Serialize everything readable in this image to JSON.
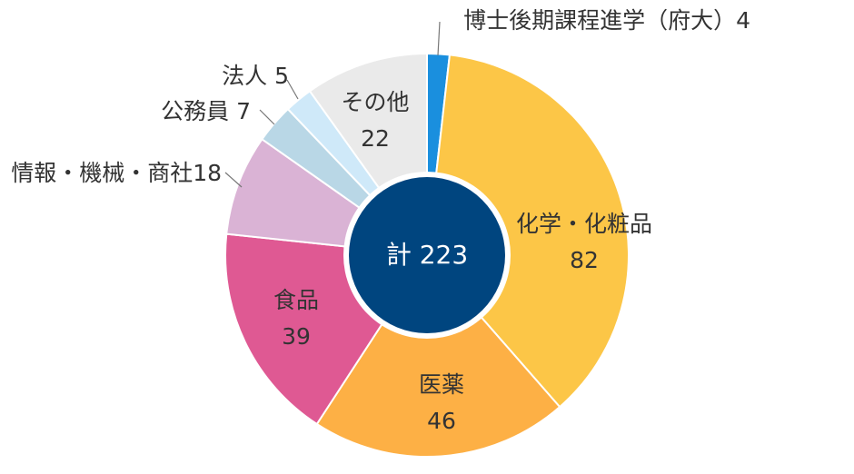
{
  "chart_data": {
    "type": "pie",
    "style": "donut",
    "center_label": "計 223",
    "total": 223,
    "slices": [
      {
        "label": "博士後期課程進学（府大）",
        "value": 4,
        "display": "博士後期課程進学（府大）4",
        "color": "#1a8fde"
      },
      {
        "label": "化学・化粧品",
        "value": 82,
        "display": "化学・化粧品",
        "value_text": "82",
        "color": "#fcc647"
      },
      {
        "label": "医薬",
        "value": 46,
        "display": "医薬",
        "value_text": "46",
        "color": "#fdb045"
      },
      {
        "label": "食品",
        "value": 39,
        "display": "食品",
        "value_text": "39",
        "color": "#df5993"
      },
      {
        "label": "情報・機械・商社",
        "value": 18,
        "display": "情報・機械・商社18",
        "color": "#dab3d5"
      },
      {
        "label": "公務員",
        "value": 7,
        "display": "公務員 7",
        "color": "#b9d7e6"
      },
      {
        "label": "法人",
        "value": 5,
        "display": "法人 5",
        "color": "#cfe9f9"
      },
      {
        "label": "その他",
        "value": 22,
        "display": "その他",
        "value_text": "22",
        "color": "#eaeaea"
      }
    ],
    "center_color": "#00457f"
  }
}
